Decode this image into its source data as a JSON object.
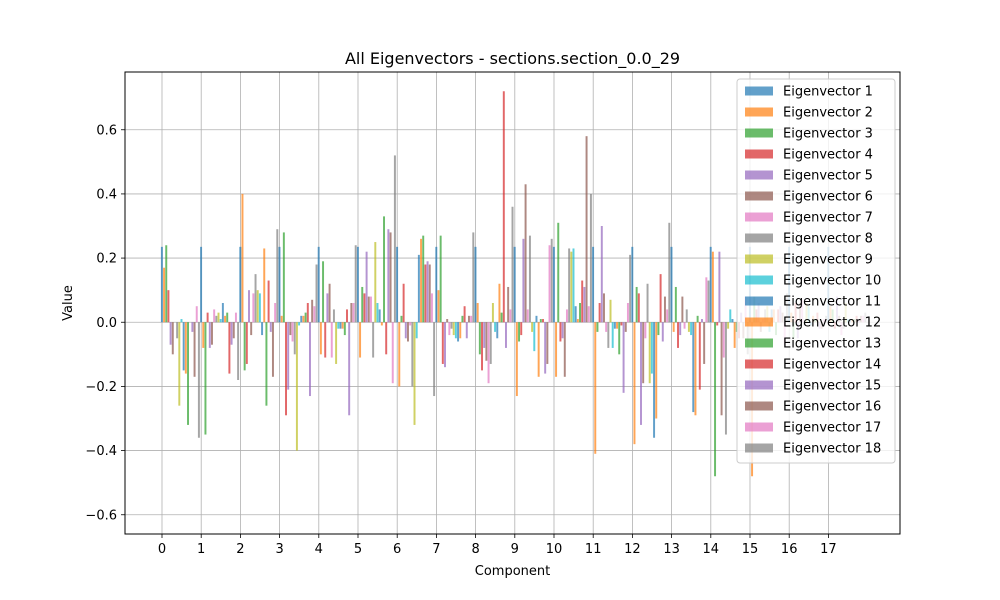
{
  "chart_data": {
    "type": "bar",
    "title": "All Eigenvectors - sections.section_0.0_29",
    "xlabel": "Component",
    "ylabel": "Value",
    "ylim": [
      -0.66,
      0.78
    ],
    "yticks": [
      -0.6,
      -0.4,
      -0.2,
      0.0,
      0.2,
      0.4,
      0.6
    ],
    "ytick_labels": [
      "−0.6",
      "−0.4",
      "−0.2",
      "0.0",
      "0.2",
      "0.4",
      "0.6"
    ],
    "categories": [
      "0",
      "1",
      "2",
      "3",
      "4",
      "5",
      "6",
      "7",
      "8",
      "9",
      "10",
      "11",
      "12",
      "13",
      "14",
      "15",
      "16",
      "17"
    ],
    "grid": true,
    "legend_position": "top-right",
    "colors": [
      "#1f77b4",
      "#ff7f0e",
      "#2ca02c",
      "#d62728",
      "#9467bd",
      "#8c564b",
      "#e377c2",
      "#7f7f7f",
      "#bcbd22",
      "#17becf",
      "#1f77b4",
      "#ff7f0e",
      "#2ca02c",
      "#d62728",
      "#9467bd",
      "#8c564b",
      "#e377c2",
      "#7f7f7f"
    ],
    "series": [
      {
        "name": "Eigenvector 1",
        "values": [
          0.235,
          0.235,
          0.235,
          0.235,
          0.235,
          0.235,
          0.235,
          0.235,
          0.235,
          0.235,
          0.235,
          0.235,
          0.235,
          0.235,
          0.235,
          0.235,
          0.235,
          0.235
        ]
      },
      {
        "name": "Eigenvector 2",
        "values": [
          0.17,
          -0.08,
          0.4,
          0.02,
          -0.1,
          -0.11,
          -0.2,
          0.1,
          0.06,
          -0.23,
          -0.17,
          -0.41,
          -0.38,
          -0.03,
          0.22,
          -0.48,
          0.03,
          0.05
        ]
      },
      {
        "name": "Eigenvector 3",
        "values": [
          0.24,
          -0.35,
          -0.15,
          0.28,
          0.19,
          0.11,
          0.02,
          0.27,
          -0.1,
          -0.06,
          0.31,
          -0.03,
          0.11,
          0.11,
          -0.48,
          0.08,
          -0.05,
          0.04
        ]
      },
      {
        "name": "Eigenvector 4",
        "values": [
          0.1,
          0.03,
          -0.13,
          -0.29,
          -0.11,
          0.09,
          0.12,
          -0.13,
          -0.15,
          -0.04,
          -0.06,
          0.06,
          0.09,
          -0.08,
          -0.01,
          0.04,
          0.06,
          -0.02
        ]
      },
      {
        "name": "Eigenvector 5",
        "values": [
          -0.07,
          -0.08,
          0.1,
          -0.21,
          0.09,
          0.22,
          -0.05,
          -0.14,
          -0.08,
          0.26,
          -0.05,
          0.3,
          -0.32,
          -0.04,
          0.22,
          0.06,
          -0.05,
          0.08
        ]
      },
      {
        "name": "Eigenvector 6",
        "values": [
          -0.1,
          -0.07,
          -0.04,
          -0.04,
          0.12,
          0.08,
          -0.06,
          0.01,
          -0.12,
          0.43,
          -0.17,
          0.09,
          -0.19,
          0.08,
          -0.29,
          -0.03,
          0.06,
          0.02
        ]
      },
      {
        "name": "Eigenvector 7",
        "values": [
          0.0,
          0.04,
          0.09,
          -0.06,
          -0.11,
          0.08,
          -0.01,
          -0.04,
          -0.19,
          0.04,
          0.04,
          -0.03,
          -0.05,
          -0.02,
          -0.11,
          0.01,
          0.07,
          -0.04
        ]
      },
      {
        "name": "Eigenvector 8",
        "values": [
          -0.05,
          0.02,
          0.15,
          -0.1,
          0.04,
          -0.11,
          -0.2,
          -0.02,
          -0.13,
          0.27,
          0.23,
          -0.08,
          0.12,
          0.04,
          -0.35,
          0.04,
          -0.01,
          -0.02
        ]
      },
      {
        "name": "Eigenvector 9",
        "values": [
          -0.26,
          0.03,
          0.1,
          -0.4,
          -0.13,
          0.25,
          -0.32,
          -0.04,
          0.06,
          -0.03,
          0.22,
          0.07,
          -0.19,
          -0.03,
          -0.02,
          0.05,
          0.06,
          0.06
        ]
      },
      {
        "name": "Eigenvector 10",
        "values": [
          0.01,
          0.01,
          0.09,
          -0.01,
          -0.02,
          0.06,
          -0.05,
          -0.05,
          -0.03,
          -0.09,
          0.23,
          -0.08,
          -0.16,
          -0.04,
          0.04,
          -0.03,
          0.05,
          0.01
        ]
      },
      {
        "name": "Eigenvector 11",
        "values": [
          -0.15,
          0.06,
          -0.04,
          0.02,
          -0.02,
          0.04,
          0.21,
          -0.06,
          -0.05,
          0.02,
          0.05,
          -0.02,
          -0.36,
          -0.28,
          0.01,
          0.04,
          -0.01,
          0.01
        ]
      },
      {
        "name": "Eigenvector 12",
        "values": [
          -0.16,
          0.02,
          0.23,
          0.02,
          -0.02,
          -0.01,
          0.26,
          -0.05,
          0.12,
          -0.17,
          0.01,
          -0.02,
          -0.3,
          -0.29,
          -0.08,
          0.04,
          0.02,
          0.01
        ]
      },
      {
        "name": "Eigenvector 13",
        "values": [
          -0.32,
          0.03,
          -0.26,
          0.03,
          -0.04,
          0.33,
          0.27,
          0.02,
          0.03,
          0.01,
          0.06,
          -0.1,
          -0.04,
          0.02,
          -0.03,
          -0.04,
          0.01,
          0.01
        ]
      },
      {
        "name": "Eigenvector 14",
        "values": [
          0.0,
          -0.16,
          0.13,
          0.06,
          0.04,
          -0.1,
          0.18,
          0.05,
          0.72,
          0.01,
          0.13,
          -0.01,
          0.15,
          -0.21,
          -0.05,
          0.04,
          0.03,
          0.02
        ]
      },
      {
        "name": "Eigenvector 15",
        "values": [
          -0.03,
          -0.07,
          -0.03,
          -0.23,
          -0.29,
          0.29,
          0.19,
          -0.05,
          -0.08,
          -0.16,
          0.11,
          -0.22,
          -0.06,
          0.01,
          0.03,
          0.05,
          -0.02,
          0.01
        ]
      },
      {
        "name": "Eigenvector 16",
        "values": [
          -0.17,
          -0.05,
          -0.17,
          0.07,
          0.06,
          0.28,
          0.18,
          0.02,
          0.11,
          -0.13,
          0.58,
          -0.03,
          0.08,
          -0.13,
          -0.05,
          0.03,
          -0.02,
          0.02
        ]
      },
      {
        "name": "Eigenvector 17",
        "values": [
          0.05,
          0.03,
          0.06,
          0.05,
          0.06,
          -0.19,
          0.09,
          0.02,
          0.04,
          0.24,
          0.05,
          0.06,
          0.04,
          0.14,
          0.08,
          -0.07,
          0.01,
          0.02
        ]
      },
      {
        "name": "Eigenvector 18",
        "values": [
          -0.36,
          -0.18,
          0.29,
          0.18,
          0.24,
          0.52,
          -0.23,
          0.28,
          0.36,
          0.26,
          0.4,
          0.21,
          0.31,
          0.13,
          -0.1,
          0.09,
          0.02,
          0.03
        ]
      }
    ]
  }
}
